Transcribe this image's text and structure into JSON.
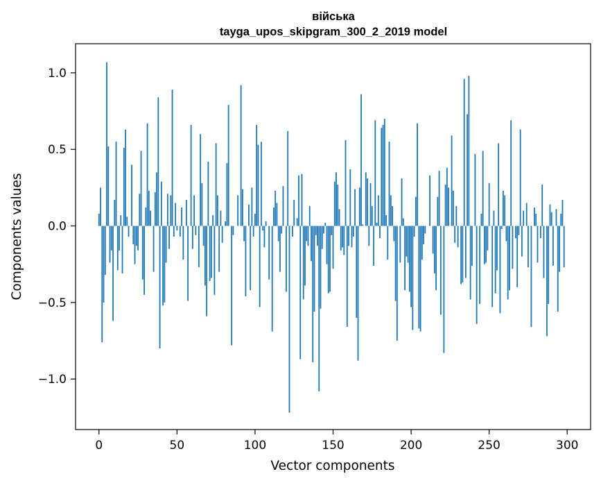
{
  "chart_data": {
    "type": "bar",
    "title": "військa",
    "title_line1": "війська",
    "title_line2": "tayga_upos_skipgram_300_2_2019 model",
    "xlabel": "Vector components",
    "ylabel": "Components values",
    "xlim": [
      -15,
      315
    ],
    "ylim": [
      -1.33,
      1.19
    ],
    "xticks": [
      0,
      50,
      100,
      150,
      200,
      250,
      300
    ],
    "yticks": [
      1.0,
      0.5,
      0.0,
      -0.5,
      -1.0
    ],
    "ytick_labels": [
      "1.0",
      "0.5",
      "0.0",
      "−0.5",
      "−1.0"
    ],
    "xtick_labels": [
      "0",
      "50",
      "100",
      "150",
      "200",
      "250",
      "300"
    ],
    "bar_color": "#1f77b4",
    "series": [
      {
        "values": [
          0.08,
          0.25,
          -0.76,
          -0.5,
          -0.32,
          1.07,
          0.52,
          -0.24,
          -0.16,
          -0.62,
          0.17,
          0.55,
          -0.29,
          -0.16,
          0.07,
          -0.31,
          0.51,
          0.63,
          0.06,
          -0.07,
          0.0,
          0.4,
          -0.12,
          -0.25,
          -0.13,
          -0.16,
          0.21,
          0.49,
          -0.35,
          -0.45,
          0.12,
          0.67,
          0.23,
          0.1,
          0.0,
          -0.3,
          0.22,
          0.35,
          0.84,
          -0.8,
          0.29,
          -0.52,
          -0.5,
          -0.24,
          0.21,
          -0.15,
          0.2,
          0.89,
          -0.07,
          0.15,
          -0.03,
          0.0,
          -0.07,
          0.12,
          -0.22,
          0.0,
          0.17,
          -0.49,
          0.0,
          0.66,
          -0.15,
          0.2,
          -0.06,
          0.0,
          -0.27,
          0.6,
          0.28,
          -0.13,
          -0.39,
          -0.59,
          0.42,
          -0.36,
          -0.34,
          0.07,
          -0.45,
          0.54,
          0.2,
          -0.3,
          0.1,
          -0.11,
          0.0,
          0.03,
          0.41,
          0.79,
          0.0,
          -0.78,
          -0.06,
          0.0,
          0.0,
          0.2,
          0.0,
          0.92,
          0.24,
          -0.1,
          -0.46,
          0.0,
          0.14,
          -0.42,
          0.25,
          -0.07,
          0.08,
          0.66,
          0.53,
          -0.53,
          0.55,
          -0.03,
          -0.14,
          0.03,
          0.0,
          -0.35,
          0.0,
          -0.69,
          0.12,
          0.23,
          0.15,
          -0.1,
          -0.3,
          -0.05,
          0.26,
          0.0,
          -0.43,
          0.62,
          -1.22,
          0.0,
          -0.07,
          0.17,
          0.0,
          0.05,
          0.33,
          -0.87,
          0.34,
          -0.48,
          -0.39,
          -0.1,
          -0.13,
          0.13,
          -0.23,
          -0.89,
          -0.56,
          -0.06,
          -0.13,
          -1.08,
          -0.54,
          -0.15,
          -0.05,
          0.02,
          -0.25,
          -0.44,
          -0.43,
          -0.06,
          -0.28,
          0.29,
          0.35,
          0.27,
          0.11,
          -0.16,
          -0.14,
          -0.19,
          0.56,
          -0.66,
          -0.13,
          0.37,
          -0.14,
          -0.07,
          0.24,
          -0.6,
          -0.88,
          0.25,
          0.86,
          0.01,
          0.0,
          0.35,
          0.31,
          -0.13,
          0.28,
          0.13,
          -0.26,
          0.69,
          0.02,
          0.2,
          -0.08,
          0.64,
          0.66,
          0.7,
          0.07,
          -0.22,
          0.55,
          0.2,
          0.13,
          -0.1,
          -0.49,
          -0.75,
          0.0,
          -0.24,
          0.31,
          0.05,
          -0.42,
          -0.2,
          -0.24,
          -0.43,
          -0.53,
          -0.68,
          -0.07,
          0.19,
          0.67,
          -0.67,
          -0.69,
          -0.22,
          -0.12,
          -0.05,
          0.0,
          0.0,
          0.33,
          0.0,
          -0.18,
          -0.31,
          -0.42,
          0.19,
          0.36,
          -0.58,
          0.0,
          -0.83,
          0.27,
          0.38,
          0.25,
          0.0,
          0.59,
          0.23,
          -0.11,
          0.13,
          -0.14,
          0.0,
          -0.38,
          -0.37,
          0.96,
          -0.34,
          0.73,
          0.98,
          -0.48,
          -0.26,
          0.0,
          0.47,
          -0.64,
          0.0,
          -0.51,
          0.08,
          0.49,
          -0.25,
          -0.24,
          -0.16,
          0.28,
          0.0,
          -0.53,
          0.1,
          -0.44,
          -0.29,
          0.54,
          -0.57,
          -0.02,
          0.23,
          0.2,
          -0.1,
          -0.48,
          -0.42,
          0.69,
          -0.28,
          0.0,
          -0.08,
          -0.4,
          -0.06,
          0.63,
          -0.2,
          0.1,
          0.0,
          0.15,
          -0.27,
          0.0,
          -0.66,
          0.0,
          0.12,
          0.08,
          -0.24,
          0.0,
          -0.08,
          0.27,
          -0.34,
          0.0,
          -0.72,
          -0.51,
          0.14,
          0.09,
          -0.26,
          0.0,
          0.11,
          -0.56,
          -0.3,
          0.08,
          0.17,
          -0.27,
          0.0
        ]
      }
    ]
  }
}
